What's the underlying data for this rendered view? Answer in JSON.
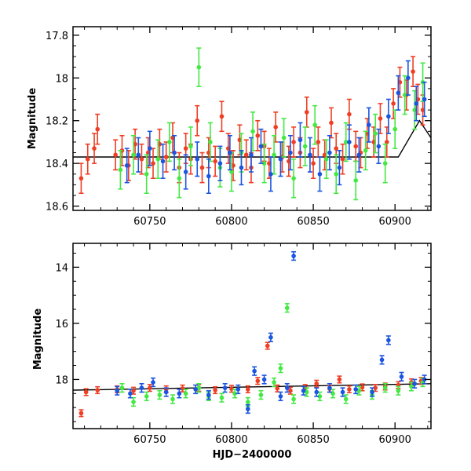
{
  "chart_data": [
    {
      "type": "scatter",
      "panel": "top",
      "title": "",
      "xlabel": "",
      "ylabel": "Magnitude",
      "xlim": [
        60703,
        60922
      ],
      "ylim": [
        18.62,
        17.76
      ],
      "inverted_y": true,
      "x_ticks": [
        60750,
        60800,
        60850,
        60900
      ],
      "y_ticks": [
        17.8,
        18,
        18.2,
        18.4,
        18.6
      ],
      "x_tick_labels": [
        "60750",
        "60800",
        "60850",
        "60900"
      ],
      "y_tick_labels": [
        "17.8",
        "18",
        "18.2",
        "18.4",
        "18.6"
      ],
      "grid": false,
      "reference_line": {
        "points": [
          [
            60703,
            18.37
          ],
          [
            60902,
            18.37
          ],
          [
            60915,
            18.2
          ],
          [
            60922,
            18.28
          ]
        ],
        "color": "#000000"
      },
      "series": [
        {
          "color": "#ef3e23",
          "err": 0.07,
          "points": [
            [
              60708,
              18.47
            ],
            [
              60712,
              18.38
            ],
            [
              60716,
              18.33
            ],
            [
              60718,
              18.24
            ],
            [
              60729,
              18.36
            ],
            [
              60733,
              18.34
            ],
            [
              60737,
              18.41
            ],
            [
              60741,
              18.31
            ],
            [
              60745,
              18.38
            ],
            [
              60749,
              18.35
            ],
            [
              60752,
              18.4
            ],
            [
              60756,
              18.31
            ],
            [
              60760,
              18.37
            ],
            [
              60764,
              18.28
            ],
            [
              60768,
              18.42
            ],
            [
              60772,
              18.33
            ],
            [
              60775,
              18.38
            ],
            [
              60779,
              18.2
            ],
            [
              60782,
              18.42
            ],
            [
              60786,
              18.35
            ],
            [
              60790,
              18.39
            ],
            [
              60794,
              18.18
            ],
            [
              60798,
              18.33
            ],
            [
              60801,
              18.41
            ],
            [
              60805,
              18.29
            ],
            [
              60809,
              18.36
            ],
            [
              60812,
              18.42
            ],
            [
              60816,
              18.27
            ],
            [
              60820,
              18.32
            ],
            [
              60823,
              18.4
            ],
            [
              60827,
              18.23
            ],
            [
              60831,
              18.37
            ],
            [
              60835,
              18.39
            ],
            [
              60838,
              18.3
            ],
            [
              60842,
              18.35
            ],
            [
              60846,
              18.16
            ],
            [
              60850,
              18.4
            ],
            [
              60853,
              18.3
            ],
            [
              60857,
              18.36
            ],
            [
              60861,
              18.21
            ],
            [
              60864,
              18.33
            ],
            [
              60868,
              18.38
            ],
            [
              60872,
              18.17
            ],
            [
              60876,
              18.32
            ],
            [
              60879,
              18.35
            ],
            [
              60883,
              18.26
            ],
            [
              60887,
              18.3
            ],
            [
              60891,
              18.19
            ],
            [
              60895,
              18.3
            ],
            [
              60899,
              18.12
            ],
            [
              60903,
              18.02
            ],
            [
              60907,
              18.08
            ],
            [
              60911,
              17.97
            ],
            [
              60914,
              18.1
            ],
            [
              60917,
              18.15
            ]
          ]
        },
        {
          "color": "#43e943",
          "err": 0.09,
          "points": [
            [
              60732,
              18.43
            ],
            [
              60740,
              18.36
            ],
            [
              60748,
              18.45
            ],
            [
              60755,
              18.38
            ],
            [
              60762,
              18.3
            ],
            [
              60768,
              18.47
            ],
            [
              60775,
              18.32
            ],
            [
              60780,
              17.95
            ],
            [
              60787,
              18.3
            ],
            [
              60793,
              18.42
            ],
            [
              60800,
              18.44
            ],
            [
              60806,
              18.35
            ],
            [
              60813,
              18.25
            ],
            [
              60820,
              18.4
            ],
            [
              60826,
              18.36
            ],
            [
              60832,
              18.28
            ],
            [
              60838,
              18.47
            ],
            [
              60845,
              18.32
            ],
            [
              60851,
              18.22
            ],
            [
              60858,
              18.38
            ],
            [
              60864,
              18.45
            ],
            [
              60870,
              18.3
            ],
            [
              60876,
              18.48
            ],
            [
              60882,
              18.34
            ],
            [
              60888,
              18.26
            ],
            [
              60894,
              18.4
            ],
            [
              60900,
              18.24
            ],
            [
              60906,
              18.08
            ],
            [
              60912,
              18.15
            ],
            [
              60917,
              18.02
            ]
          ]
        },
        {
          "color": "#1b55e0",
          "err": 0.08,
          "points": [
            [
              60736,
              18.41
            ],
            [
              60743,
              18.36
            ],
            [
              60750,
              18.33
            ],
            [
              60758,
              18.39
            ],
            [
              60765,
              18.35
            ],
            [
              60772,
              18.44
            ],
            [
              60779,
              18.38
            ],
            [
              60786,
              18.46
            ],
            [
              60793,
              18.4
            ],
            [
              60799,
              18.35
            ],
            [
              60806,
              18.42
            ],
            [
              60812,
              18.36
            ],
            [
              60818,
              18.32
            ],
            [
              60824,
              18.45
            ],
            [
              60830,
              18.38
            ],
            [
              60836,
              18.35
            ],
            [
              60842,
              18.29
            ],
            [
              60848,
              18.36
            ],
            [
              60854,
              18.45
            ],
            [
              60860,
              18.35
            ],
            [
              60866,
              18.42
            ],
            [
              60872,
              18.3
            ],
            [
              60878,
              18.36
            ],
            [
              60884,
              18.22
            ],
            [
              60890,
              18.32
            ],
            [
              60896,
              18.18
            ],
            [
              60902,
              18.07
            ],
            [
              60908,
              18.0
            ],
            [
              60913,
              18.12
            ],
            [
              60918,
              18.1
            ]
          ]
        }
      ]
    },
    {
      "type": "scatter",
      "panel": "bottom",
      "title": "",
      "xlabel": "HJD−2400000",
      "ylabel": "Magnitude",
      "xlim": [
        60703,
        60922
      ],
      "ylim": [
        19.75,
        13.15
      ],
      "inverted_y": true,
      "x_ticks": [
        60750,
        60800,
        60850,
        60900
      ],
      "y_ticks": [
        14,
        16,
        18
      ],
      "x_tick_labels": [
        "60750",
        "60800",
        "60850",
        "60900"
      ],
      "y_tick_labels": [
        "14",
        "16",
        "18"
      ],
      "grid": false,
      "reference_line": {
        "points": [
          [
            60703,
            18.38
          ],
          [
            60922,
            18.15
          ]
        ],
        "color": "#000000"
      },
      "series": [
        {
          "color": "#ef3e23",
          "err": 0.12,
          "points": [
            [
              60708,
              19.2
            ],
            [
              60711,
              18.45
            ],
            [
              60718,
              18.38
            ],
            [
              60730,
              18.35
            ],
            [
              60740,
              18.4
            ],
            [
              60750,
              18.3
            ],
            [
              60760,
              18.35
            ],
            [
              60770,
              18.32
            ],
            [
              60780,
              18.3
            ],
            [
              60790,
              18.38
            ],
            [
              60800,
              18.33
            ],
            [
              60810,
              18.35
            ],
            [
              60816,
              18.05
            ],
            [
              60822,
              16.8
            ],
            [
              60828,
              18.32
            ],
            [
              60836,
              18.4
            ],
            [
              60845,
              18.3
            ],
            [
              60852,
              18.15
            ],
            [
              60860,
              18.33
            ],
            [
              60866,
              18.0
            ],
            [
              60872,
              18.35
            ],
            [
              60880,
              18.28
            ],
            [
              60888,
              18.3
            ],
            [
              60894,
              18.25
            ],
            [
              60902,
              18.2
            ],
            [
              60910,
              18.1
            ],
            [
              60916,
              18.05
            ]
          ]
        },
        {
          "color": "#43e943",
          "err": 0.15,
          "points": [
            [
              60733,
              18.3
            ],
            [
              60740,
              18.8
            ],
            [
              60748,
              18.6
            ],
            [
              60756,
              18.55
            ],
            [
              60764,
              18.7
            ],
            [
              60772,
              18.5
            ],
            [
              60780,
              18.3
            ],
            [
              60786,
              18.6
            ],
            [
              60794,
              18.65
            ],
            [
              60802,
              18.5
            ],
            [
              60810,
              18.8
            ],
            [
              60818,
              18.55
            ],
            [
              60826,
              18.1
            ],
            [
              60830,
              17.6
            ],
            [
              60834,
              15.45
            ],
            [
              60838,
              18.7
            ],
            [
              60846,
              18.45
            ],
            [
              60854,
              18.6
            ],
            [
              60862,
              18.5
            ],
            [
              60870,
              18.7
            ],
            [
              60878,
              18.4
            ],
            [
              60886,
              18.55
            ],
            [
              60894,
              18.3
            ],
            [
              60902,
              18.4
            ],
            [
              60910,
              18.25
            ],
            [
              60917,
              18.1
            ]
          ]
        },
        {
          "color": "#1b55e0",
          "err": 0.15,
          "points": [
            [
              60730,
              18.4
            ],
            [
              60738,
              18.5
            ],
            [
              60745,
              18.3
            ],
            [
              60752,
              18.1
            ],
            [
              60760,
              18.45
            ],
            [
              60768,
              18.5
            ],
            [
              60778,
              18.35
            ],
            [
              60786,
              18.55
            ],
            [
              60796,
              18.3
            ],
            [
              60804,
              18.35
            ],
            [
              60810,
              19.05
            ],
            [
              60814,
              17.7
            ],
            [
              60820,
              18.0
            ],
            [
              60824,
              16.5
            ],
            [
              60830,
              18.6
            ],
            [
              60834,
              18.3
            ],
            [
              60838,
              13.6
            ],
            [
              60844,
              18.4
            ],
            [
              60852,
              18.45
            ],
            [
              60860,
              18.3
            ],
            [
              60868,
              18.45
            ],
            [
              60876,
              18.35
            ],
            [
              60886,
              18.45
            ],
            [
              60892,
              17.3
            ],
            [
              60896,
              16.6
            ],
            [
              60904,
              17.9
            ],
            [
              60912,
              18.15
            ],
            [
              60918,
              18.0
            ]
          ]
        }
      ]
    }
  ]
}
